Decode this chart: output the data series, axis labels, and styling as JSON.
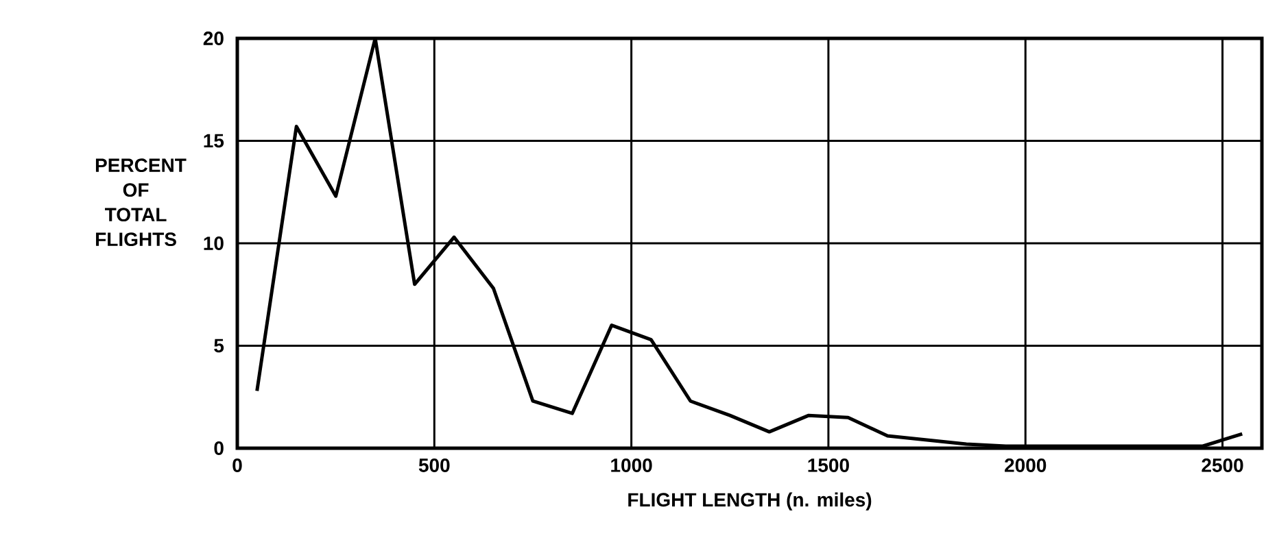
{
  "chart_data": {
    "type": "line",
    "xlabel": "FLIGHT LENGTH (n. miles)",
    "ylabel": "PERCENT OF TOTAL FLIGHTS",
    "x": [
      50,
      150,
      250,
      350,
      450,
      550,
      650,
      750,
      850,
      950,
      1050,
      1150,
      1250,
      1350,
      1450,
      1550,
      1650,
      1750,
      1850,
      1950,
      2050,
      2150,
      2250,
      2350,
      2450,
      2550
    ],
    "series": [
      {
        "color": "#000000",
        "values": [
          2.8,
          15.7,
          12.3,
          20,
          8.0,
          10.3,
          7.8,
          2.3,
          1.7,
          6.0,
          5.3,
          2.3,
          1.6,
          0.8,
          1.6,
          1.5,
          0.6,
          0.4,
          0.2,
          0.1,
          0.1,
          0.1,
          0.1,
          0.1,
          0.1,
          0.7
        ]
      }
    ],
    "xlim": [
      0,
      2600
    ],
    "ylim": [
      0,
      20
    ],
    "xticks": [
      0,
      500,
      1000,
      1500,
      2000,
      2500
    ],
    "yticks": [
      0,
      5,
      10,
      15,
      20
    ],
    "grid": true,
    "marker": "none",
    "line_style": "solid"
  }
}
